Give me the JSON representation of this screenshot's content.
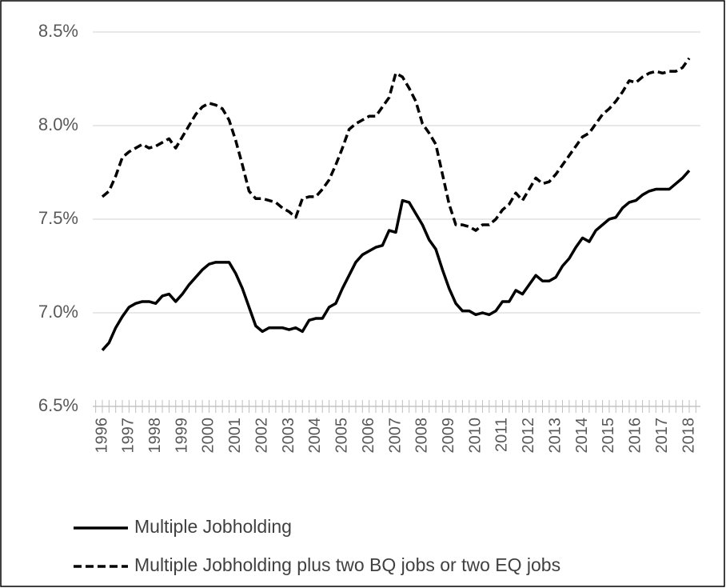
{
  "chart_data": {
    "type": "line",
    "categories": [
      "1996",
      null,
      null,
      null,
      "1997",
      null,
      null,
      null,
      "1998",
      null,
      null,
      null,
      "1999",
      null,
      null,
      null,
      "2000",
      null,
      null,
      null,
      "2001",
      null,
      null,
      null,
      "2002",
      null,
      null,
      null,
      "2003",
      null,
      null,
      null,
      "2004",
      null,
      null,
      null,
      "2005",
      null,
      null,
      null,
      "2006",
      null,
      null,
      null,
      "2007",
      null,
      null,
      null,
      "2008",
      null,
      null,
      null,
      "2009",
      null,
      null,
      null,
      "2010",
      null,
      null,
      null,
      "2011",
      null,
      null,
      null,
      "2012",
      null,
      null,
      null,
      "2013",
      null,
      null,
      null,
      "2014",
      null,
      null,
      null,
      "2015",
      null,
      null,
      null,
      "2016",
      null,
      null,
      null,
      "2017",
      null,
      null,
      null,
      "2018"
    ],
    "series": [
      {
        "name": "Multiple Jobholding",
        "color": "#000000",
        "dash": false,
        "values": [
          6.8,
          6.84,
          6.92,
          6.98,
          7.03,
          7.05,
          7.06,
          7.06,
          7.05,
          7.09,
          7.1,
          7.06,
          7.1,
          7.15,
          7.19,
          7.23,
          7.26,
          7.27,
          7.27,
          7.27,
          7.21,
          7.13,
          7.03,
          6.93,
          6.9,
          6.92,
          6.92,
          6.92,
          6.91,
          6.92,
          6.9,
          6.96,
          6.97,
          6.97,
          7.03,
          7.05,
          7.13,
          7.2,
          7.27,
          7.31,
          7.33,
          7.35,
          7.36,
          7.44,
          7.43,
          7.6,
          7.59,
          7.53,
          7.47,
          7.39,
          7.34,
          7.23,
          7.13,
          7.05,
          7.01,
          7.01,
          6.99,
          7.0,
          6.99,
          7.01,
          7.06,
          7.06,
          7.12,
          7.1,
          7.15,
          7.2,
          7.17,
          7.17,
          7.19,
          7.25,
          7.29,
          7.35,
          7.4,
          7.38,
          7.44,
          7.47,
          7.5,
          7.51,
          7.56,
          7.59,
          7.6,
          7.63,
          7.65,
          7.66,
          7.66,
          7.66,
          7.69,
          7.72,
          7.76
        ]
      },
      {
        "name": "Multiple Jobholding plus two BQ jobs or two EQ jobs",
        "color": "#000000",
        "dash": true,
        "values": [
          7.62,
          7.65,
          7.73,
          7.83,
          7.86,
          7.88,
          7.9,
          7.88,
          7.89,
          7.91,
          7.93,
          7.88,
          7.94,
          8.0,
          8.06,
          8.1,
          8.12,
          8.11,
          8.09,
          8.03,
          7.92,
          7.79,
          7.65,
          7.61,
          7.61,
          7.6,
          7.59,
          7.56,
          7.54,
          7.51,
          7.61,
          7.62,
          7.62,
          7.66,
          7.71,
          7.79,
          7.88,
          7.98,
          8.01,
          8.03,
          8.05,
          8.05,
          8.1,
          8.15,
          8.28,
          8.26,
          8.2,
          8.13,
          8.01,
          7.96,
          7.9,
          7.74,
          7.58,
          7.47,
          7.47,
          7.46,
          7.44,
          7.47,
          7.47,
          7.5,
          7.55,
          7.58,
          7.64,
          7.6,
          7.66,
          7.72,
          7.69,
          7.7,
          7.74,
          7.79,
          7.84,
          7.89,
          7.94,
          7.96,
          8.01,
          8.06,
          8.09,
          8.13,
          8.18,
          8.24,
          8.23,
          8.26,
          8.28,
          8.29,
          8.28,
          8.29,
          8.29,
          8.31,
          8.36
        ]
      }
    ],
    "ylim": [
      6.5,
      8.5
    ],
    "yticks": [
      {
        "value": 6.5,
        "label": "6.5%"
      },
      {
        "value": 7.0,
        "label": "7.0%"
      },
      {
        "value": 7.5,
        "label": "7.5%"
      },
      {
        "value": 8.0,
        "label": "8.0%"
      },
      {
        "value": 8.5,
        "label": "8.5%"
      }
    ],
    "grid": true
  }
}
